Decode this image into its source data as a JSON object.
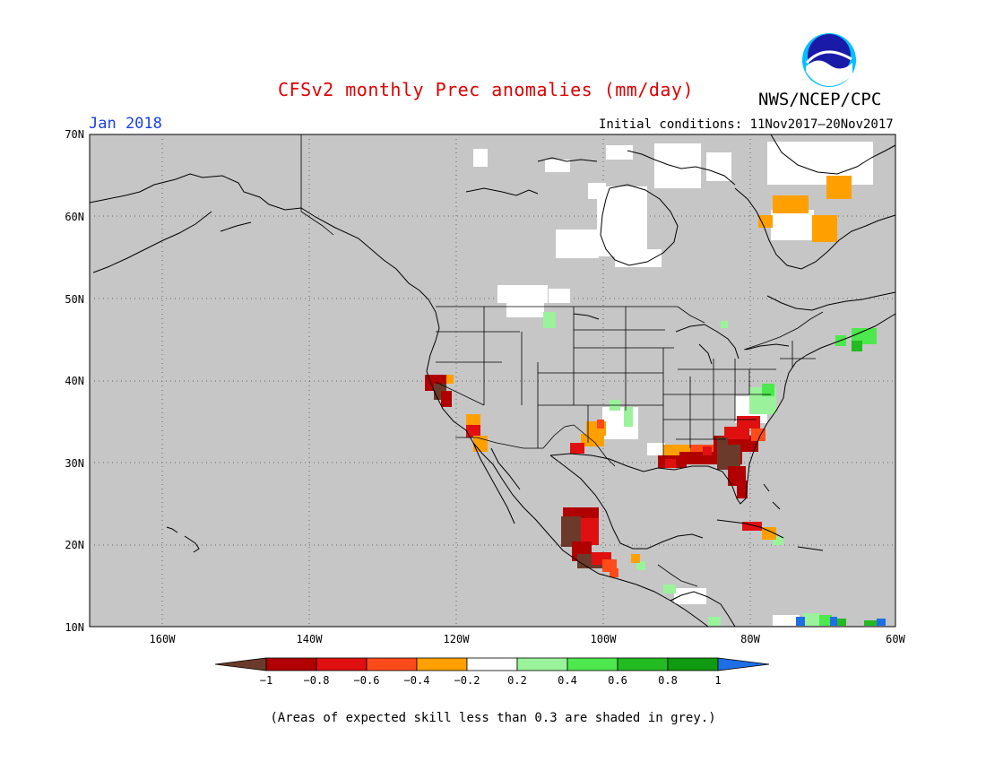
{
  "title": "CFSv2 monthly Prec anomalies (mm/day)",
  "agency": "NWS/NCEP/CPC",
  "month": "Jan 2018",
  "initial_conditions": "Initial conditions: 11Nov2017–20Nov2017",
  "logo_text": "NOAA",
  "lat_labels": [
    "70N",
    "60N",
    "50N",
    "40N",
    "30N",
    "20N",
    "10N"
  ],
  "lon_labels": [
    "160W",
    "140W",
    "120W",
    "100W",
    "80W",
    "60W"
  ],
  "colorbar": {
    "labels": [
      "−1",
      "−0.8",
      "−0.6",
      "−0.4",
      "−0.2",
      "0.2",
      "0.4",
      "0.6",
      "0.8",
      "1"
    ],
    "colors": [
      "#6b3a2a",
      "#b10000",
      "#e01010",
      "#ff4a1a",
      "#ffa000",
      "#ffffff",
      "#9af39a",
      "#4de84d",
      "#22bb22",
      "#0f9a0f",
      "#1e6fe6"
    ]
  },
  "footnote": "(Areas of expected skill less than 0.3 are shaded in grey.)",
  "colors": {
    "grey": "#c6c6c6",
    "title": "#e00000",
    "month": "#1a3ff0"
  }
}
